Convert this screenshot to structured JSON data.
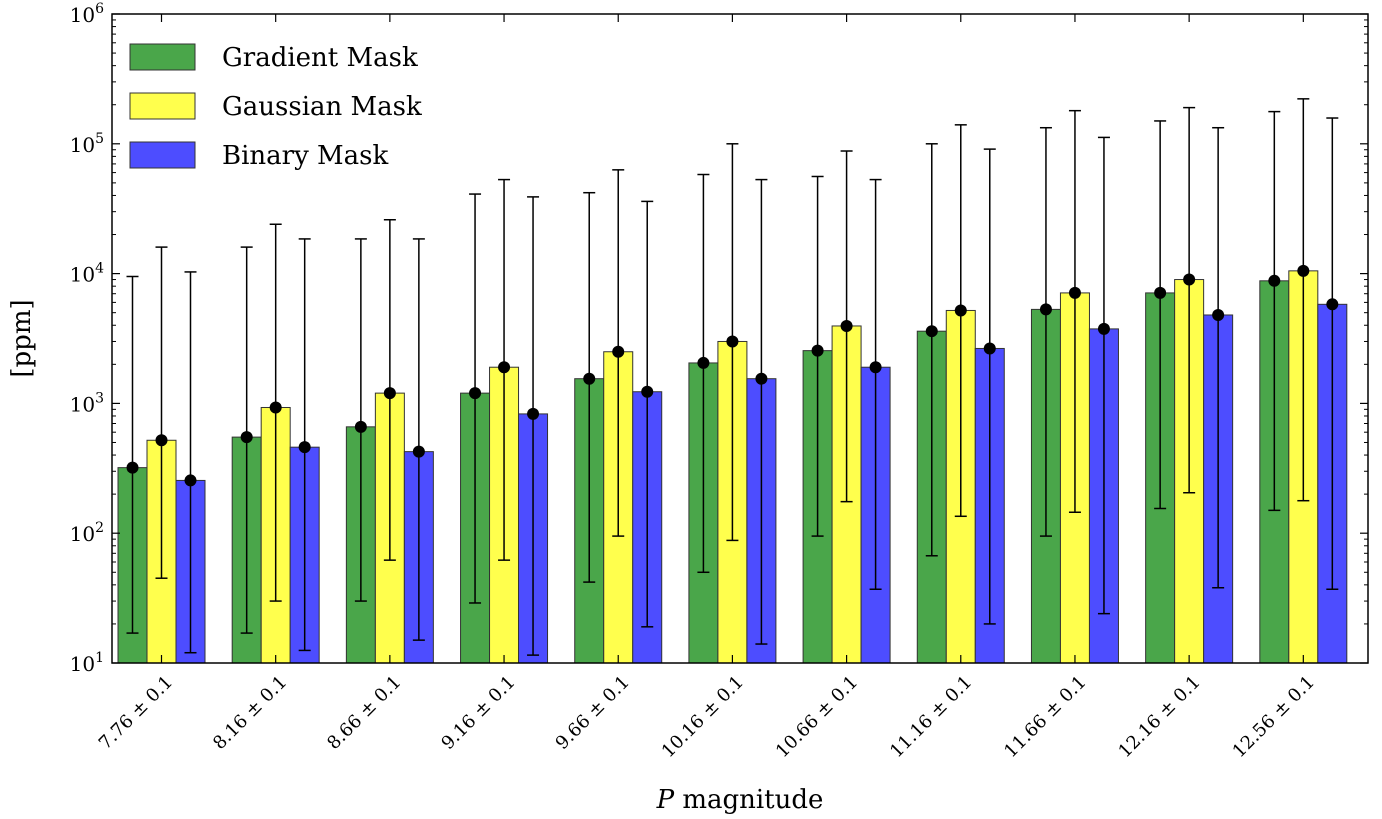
{
  "chart_data": {
    "type": "bar",
    "xlabel": "P magnitude",
    "ylabel": "[ppm]",
    "yscale": "log",
    "ylim": [
      10,
      1000000
    ],
    "y_ticks": [
      {
        "value": 10,
        "base": "10",
        "exp": "1"
      },
      {
        "value": 100,
        "base": "10",
        "exp": "2"
      },
      {
        "value": 1000,
        "base": "10",
        "exp": "3"
      },
      {
        "value": 10000,
        "base": "10",
        "exp": "4"
      },
      {
        "value": 100000,
        "base": "10",
        "exp": "5"
      },
      {
        "value": 1000000,
        "base": "10",
        "exp": "6"
      }
    ],
    "categories": [
      "7.76 ± 0.1",
      "8.16 ± 0.1",
      "8.66 ± 0.1",
      "9.16 ± 0.1",
      "9.66 ± 0.1",
      "10.16 ± 0.1",
      "10.66 ± 0.1",
      "11.16 ± 0.1",
      "11.66 ± 0.1",
      "12.16 ± 0.1",
      "12.56 ± 0.1"
    ],
    "legend_position": "top-left",
    "grid": false,
    "series": [
      {
        "name": "Gradient Mask",
        "color": "#4aa64a",
        "values": [
          320,
          550,
          660,
          1200,
          1550,
          2050,
          2550,
          3600,
          5300,
          7100,
          8800
        ],
        "err_low": [
          17,
          17,
          30,
          29,
          42,
          50,
          95,
          67,
          95,
          155,
          150
        ],
        "err_high": [
          9500,
          16000,
          18500,
          41000,
          42000,
          58000,
          56000,
          100000,
          133000,
          150000,
          177000
        ]
      },
      {
        "name": "Gaussian Mask",
        "color": "#ffff4d",
        "values": [
          520,
          930,
          1200,
          1900,
          2500,
          3000,
          3950,
          5200,
          7100,
          9000,
          10500
        ],
        "err_low": [
          45,
          30,
          62,
          62,
          95,
          88,
          175,
          135,
          145,
          205,
          178
        ],
        "err_high": [
          16000,
          24000,
          26000,
          53000,
          63000,
          100000,
          88000,
          140000,
          180000,
          190000,
          222000
        ]
      },
      {
        "name": "Binary Mask",
        "color": "#4d4dff",
        "values": [
          255,
          460,
          425,
          830,
          1230,
          1550,
          1900,
          2650,
          3750,
          4800,
          5800
        ],
        "err_low": [
          12,
          12.5,
          15,
          11.5,
          19,
          14,
          37,
          20,
          24,
          38,
          37
        ],
        "err_high": [
          10300,
          18500,
          18500,
          39000,
          36000,
          53000,
          53000,
          91000,
          112000,
          133000,
          158000
        ]
      }
    ]
  }
}
